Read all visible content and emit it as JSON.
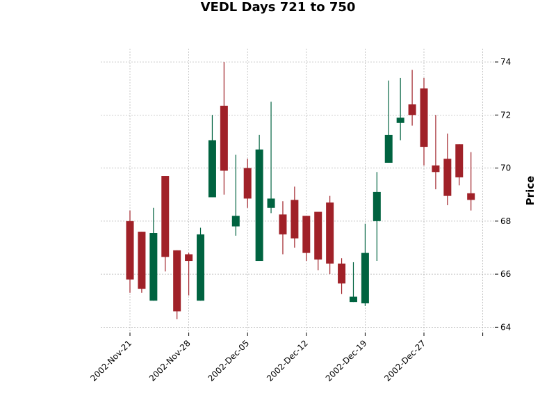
{
  "chart_data": {
    "type": "candlestick",
    "title": "VEDL Days 721 to 750",
    "ylabel": "Price",
    "xlabel": "",
    "ylim": [
      63.8,
      74.5
    ],
    "yticks": [
      64,
      66,
      68,
      70,
      72,
      74
    ],
    "grid": true,
    "colors": {
      "up": "#006340",
      "down": "#a02128"
    },
    "xtick_labels": [
      {
        "index": 0,
        "label": "2002-Nov-21"
      },
      {
        "index": 5,
        "label": "2002-Nov-28"
      },
      {
        "index": 10,
        "label": "2002-Dec-05"
      },
      {
        "index": 15,
        "label": "2002-Dec-12"
      },
      {
        "index": 20,
        "label": "2002-Dec-19"
      },
      {
        "index": 25,
        "label": "2002-Dec-27"
      },
      {
        "index": 30,
        "label": ""
      }
    ],
    "candles": [
      {
        "open": 68.0,
        "high": 68.4,
        "low": 65.3,
        "close": 65.8
      },
      {
        "open": 67.6,
        "high": 67.6,
        "low": 65.3,
        "close": 65.45
      },
      {
        "open": 65.0,
        "high": 68.5,
        "low": 65.0,
        "close": 67.55
      },
      {
        "open": 69.7,
        "high": 69.7,
        "low": 66.1,
        "close": 66.65
      },
      {
        "open": 66.9,
        "high": 66.9,
        "low": 64.3,
        "close": 64.6
      },
      {
        "open": 66.75,
        "high": 66.8,
        "low": 65.2,
        "close": 66.5
      },
      {
        "open": 65.0,
        "high": 67.75,
        "low": 65.0,
        "close": 67.5
      },
      {
        "open": 68.9,
        "high": 72.0,
        "low": 68.9,
        "close": 71.05
      },
      {
        "open": 72.35,
        "high": 74.0,
        "low": 69.0,
        "close": 69.9
      },
      {
        "open": 67.8,
        "high": 70.5,
        "low": 67.45,
        "close": 68.2
      },
      {
        "open": 70.0,
        "high": 70.35,
        "low": 68.5,
        "close": 68.85
      },
      {
        "open": 66.5,
        "high": 71.25,
        "low": 66.5,
        "close": 70.7
      },
      {
        "open": 68.5,
        "high": 72.5,
        "low": 68.3,
        "close": 68.85
      },
      {
        "open": 68.25,
        "high": 68.75,
        "low": 66.75,
        "close": 67.5
      },
      {
        "open": 68.8,
        "high": 69.3,
        "low": 67.0,
        "close": 67.35
      },
      {
        "open": 68.2,
        "high": 68.2,
        "low": 66.5,
        "close": 66.8
      },
      {
        "open": 68.35,
        "high": 68.35,
        "low": 66.15,
        "close": 66.55
      },
      {
        "open": 68.7,
        "high": 68.95,
        "low": 66.0,
        "close": 66.4
      },
      {
        "open": 66.4,
        "high": 66.6,
        "low": 65.25,
        "close": 65.65
      },
      {
        "open": 64.95,
        "high": 66.45,
        "low": 64.95,
        "close": 65.15
      },
      {
        "open": 64.9,
        "high": 67.9,
        "low": 64.8,
        "close": 66.8
      },
      {
        "open": 68.0,
        "high": 69.85,
        "low": 66.5,
        "close": 69.1
      },
      {
        "open": 70.2,
        "high": 73.3,
        "low": 70.2,
        "close": 71.25
      },
      {
        "open": 71.7,
        "high": 73.4,
        "low": 71.05,
        "close": 71.9
      },
      {
        "open": 72.4,
        "high": 73.7,
        "low": 71.6,
        "close": 72.0
      },
      {
        "open": 73.0,
        "high": 73.4,
        "low": 70.1,
        "close": 70.8
      },
      {
        "open": 70.1,
        "high": 72.0,
        "low": 69.2,
        "close": 69.85
      },
      {
        "open": 70.35,
        "high": 71.3,
        "low": 68.6,
        "close": 68.95
      },
      {
        "open": 70.9,
        "high": 70.9,
        "low": 69.35,
        "close": 69.65
      },
      {
        "open": 69.05,
        "high": 70.6,
        "low": 68.4,
        "close": 68.8
      }
    ]
  }
}
